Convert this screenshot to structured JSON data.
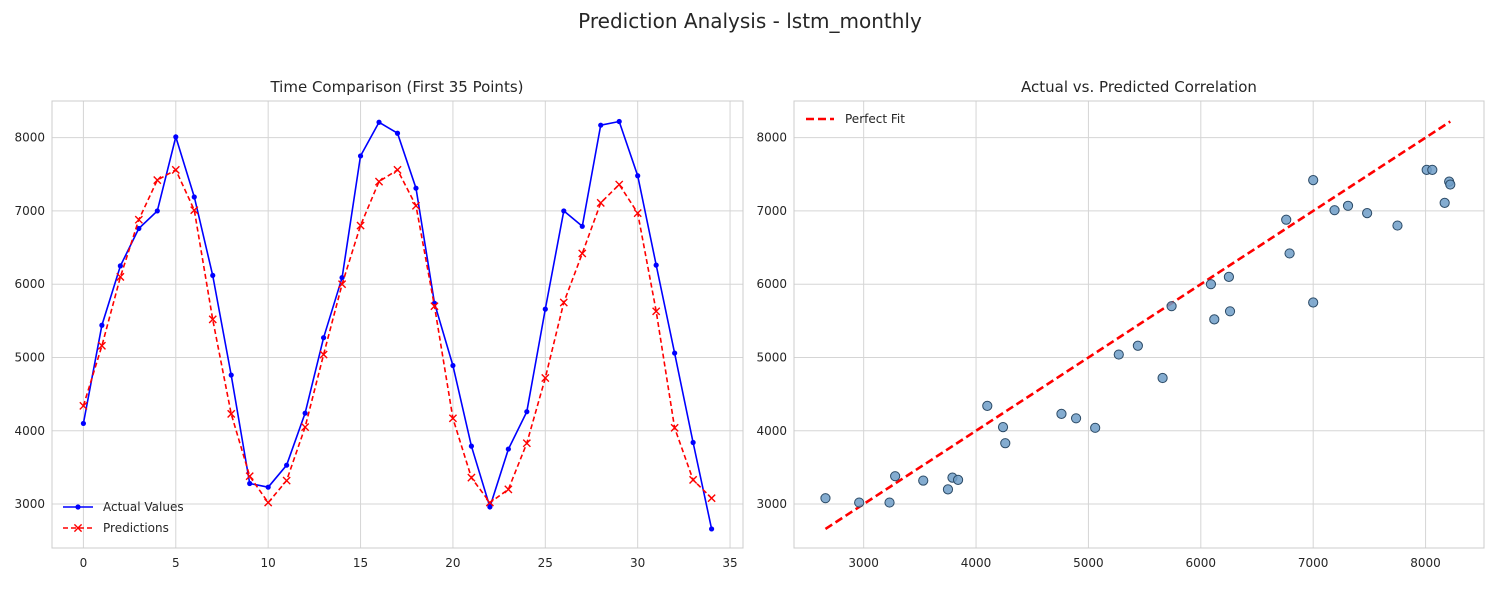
{
  "figure": {
    "suptitle": "Prediction Analysis - lstm_monthly"
  },
  "chart_data": [
    {
      "type": "line",
      "title": "Time Comparison (First 35 Points)",
      "xlabel": "",
      "ylabel": "",
      "xlim": [
        -1.7,
        35.7
      ],
      "ylim": [
        2400,
        8500
      ],
      "xticks": [
        0,
        5,
        10,
        15,
        20,
        25,
        30,
        35
      ],
      "yticks": [
        3000,
        4000,
        5000,
        6000,
        7000,
        8000
      ],
      "grid": true,
      "legend_position": "lower-left",
      "x": [
        0,
        1,
        2,
        3,
        4,
        5,
        6,
        7,
        8,
        9,
        10,
        11,
        12,
        13,
        14,
        15,
        16,
        17,
        18,
        19,
        20,
        21,
        22,
        23,
        24,
        25,
        26,
        27,
        28,
        29,
        30,
        31,
        32,
        33,
        34
      ],
      "series": [
        {
          "name": "Actual Values",
          "color": "#0000ff",
          "style": "solid",
          "marker": "dot",
          "values": [
            4100,
            5440,
            6250,
            6760,
            7000,
            8010,
            7190,
            6120,
            4760,
            3280,
            3230,
            3530,
            4240,
            5270,
            6090,
            7750,
            8210,
            8060,
            7310,
            5740,
            4890,
            3790,
            2960,
            3750,
            4260,
            5660,
            7000,
            6790,
            8170,
            8220,
            7480,
            6260,
            5060,
            3840,
            2660
          ]
        },
        {
          "name": "Predictions",
          "color": "#ff0000",
          "style": "dashed",
          "marker": "x",
          "values": [
            4340,
            5160,
            6100,
            6880,
            7420,
            7560,
            7010,
            5520,
            4230,
            3380,
            3020,
            3320,
            4050,
            5040,
            6000,
            6800,
            7400,
            7560,
            7070,
            5700,
            4170,
            3360,
            3020,
            3200,
            3830,
            4720,
            5750,
            6420,
            7110,
            7360,
            6970,
            5630,
            4040,
            3330,
            3080
          ]
        }
      ]
    },
    {
      "type": "scatter",
      "title": "Actual vs. Predicted Correlation",
      "xlabel": "",
      "ylabel": "",
      "xlim": [
        2380,
        8520
      ],
      "ylim": [
        2400,
        8500
      ],
      "xticks": [
        3000,
        4000,
        5000,
        6000,
        7000,
        8000
      ],
      "yticks": [
        3000,
        4000,
        5000,
        6000,
        7000,
        8000
      ],
      "grid": true,
      "legend_position": "upper-left",
      "perfect_fit": {
        "name": "Perfect Fit",
        "color": "#ff0000",
        "style": "dashed",
        "x": [
          2660,
          8220
        ],
        "y": [
          2660,
          8220
        ]
      },
      "point_color": "#6f9ec8",
      "point_edge_color": "#2b4a66",
      "points": [
        {
          "x": 4100,
          "y": 4340
        },
        {
          "x": 5440,
          "y": 5160
        },
        {
          "x": 6250,
          "y": 6100
        },
        {
          "x": 6760,
          "y": 6880
        },
        {
          "x": 7000,
          "y": 7420
        },
        {
          "x": 8010,
          "y": 7560
        },
        {
          "x": 7190,
          "y": 7010
        },
        {
          "x": 6120,
          "y": 5520
        },
        {
          "x": 4760,
          "y": 4230
        },
        {
          "x": 3280,
          "y": 3380
        },
        {
          "x": 3230,
          "y": 3020
        },
        {
          "x": 3530,
          "y": 3320
        },
        {
          "x": 4240,
          "y": 4050
        },
        {
          "x": 5270,
          "y": 5040
        },
        {
          "x": 6090,
          "y": 6000
        },
        {
          "x": 7750,
          "y": 6800
        },
        {
          "x": 8210,
          "y": 7400
        },
        {
          "x": 8060,
          "y": 7560
        },
        {
          "x": 7310,
          "y": 7070
        },
        {
          "x": 5740,
          "y": 5700
        },
        {
          "x": 4890,
          "y": 4170
        },
        {
          "x": 3790,
          "y": 3360
        },
        {
          "x": 2960,
          "y": 3020
        },
        {
          "x": 3750,
          "y": 3200
        },
        {
          "x": 4260,
          "y": 3830
        },
        {
          "x": 5660,
          "y": 4720
        },
        {
          "x": 7000,
          "y": 5750
        },
        {
          "x": 6790,
          "y": 6420
        },
        {
          "x": 8170,
          "y": 7110
        },
        {
          "x": 8220,
          "y": 7360
        },
        {
          "x": 7480,
          "y": 6970
        },
        {
          "x": 6260,
          "y": 5630
        },
        {
          "x": 5060,
          "y": 4040
        },
        {
          "x": 3840,
          "y": 3330
        },
        {
          "x": 2660,
          "y": 3080
        }
      ]
    }
  ]
}
